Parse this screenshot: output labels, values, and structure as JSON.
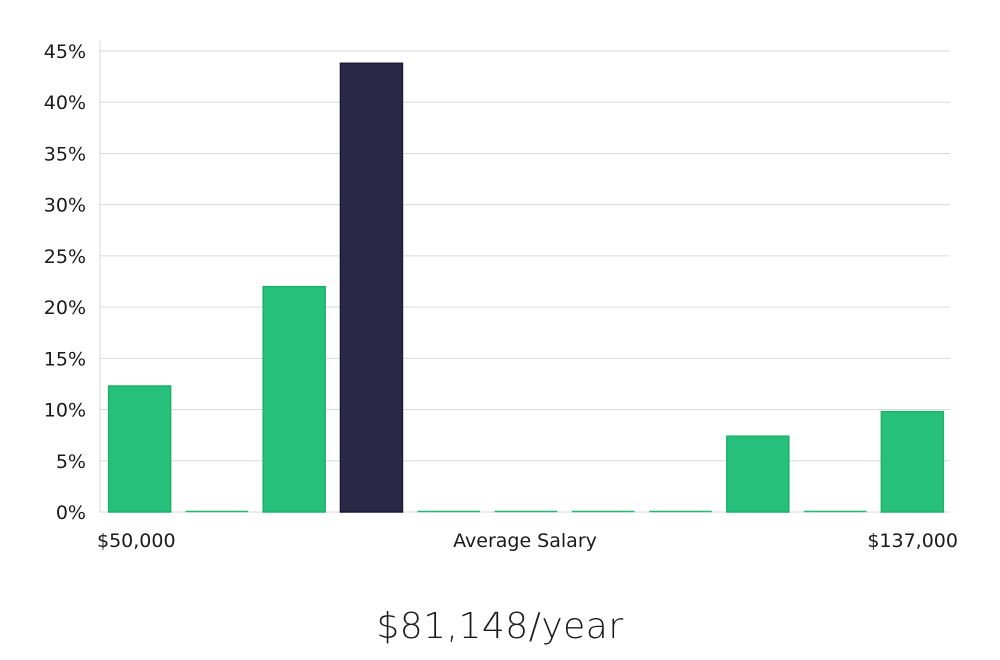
{
  "chart_data": {
    "type": "bar",
    "title": "",
    "xlabel": "Average Salary",
    "ylabel": "",
    "x_min_label": "$50,000",
    "x_max_label": "$137,000",
    "ylim": [
      0,
      45
    ],
    "yticks": [
      0,
      5,
      10,
      15,
      20,
      25,
      30,
      35,
      40,
      45
    ],
    "ytick_labels": [
      "0%",
      "5%",
      "10%",
      "15%",
      "20%",
      "25%",
      "30%",
      "35%",
      "40%",
      "45%"
    ],
    "grid": true,
    "values": [
      12.3,
      0,
      22.0,
      43.8,
      0,
      0,
      0,
      0,
      7.4,
      0,
      9.8
    ],
    "highlight_index": 3,
    "colors": {
      "bar": "#27c07a",
      "bar_border": "#1fb06c",
      "highlight": "#2a2747",
      "highlight_border": "#1b1838",
      "grid": "#d9d9d9",
      "text": "#1a1a1a"
    }
  },
  "summary": {
    "average_salary": "$81,148/year"
  }
}
